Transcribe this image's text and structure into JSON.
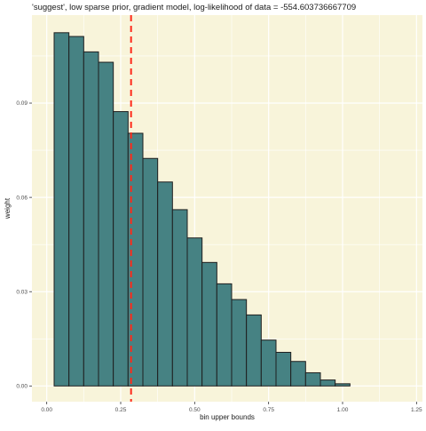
{
  "chart_data": {
    "type": "bar",
    "title": "'suggest', low sparse prior, gradient model, log-likelihood of data = -554.603736667709",
    "xlabel": "bin upper bounds",
    "ylabel": "weight",
    "xlim": [
      -0.05,
      1.27
    ],
    "ylim": [
      -0.005,
      0.118
    ],
    "x_ticks": [
      0.0,
      0.25,
      0.5,
      0.75,
      1.0,
      1.25
    ],
    "x_tick_labels": [
      "0.00",
      "0.25",
      "0.50",
      "0.75",
      "1.00",
      "1.25"
    ],
    "y_ticks": [
      0.0,
      0.03,
      0.06,
      0.09
    ],
    "y_tick_labels": [
      "0.00",
      "0.03",
      "0.06",
      "0.09"
    ],
    "bins": [
      {
        "x0": 0.025,
        "x1": 0.075,
        "value": 0.1124
      },
      {
        "x0": 0.075,
        "x1": 0.125,
        "value": 0.1112
      },
      {
        "x0": 0.125,
        "x1": 0.175,
        "value": 0.1063
      },
      {
        "x0": 0.175,
        "x1": 0.225,
        "value": 0.103
      },
      {
        "x0": 0.225,
        "x1": 0.275,
        "value": 0.0873
      },
      {
        "x0": 0.275,
        "x1": 0.325,
        "value": 0.0804
      },
      {
        "x0": 0.325,
        "x1": 0.375,
        "value": 0.0724
      },
      {
        "x0": 0.375,
        "x1": 0.425,
        "value": 0.0649
      },
      {
        "x0": 0.425,
        "x1": 0.475,
        "value": 0.0561
      },
      {
        "x0": 0.475,
        "x1": 0.525,
        "value": 0.0471
      },
      {
        "x0": 0.525,
        "x1": 0.575,
        "value": 0.0393
      },
      {
        "x0": 0.575,
        "x1": 0.625,
        "value": 0.0325
      },
      {
        "x0": 0.625,
        "x1": 0.675,
        "value": 0.0275
      },
      {
        "x0": 0.675,
        "x1": 0.725,
        "value": 0.0226
      },
      {
        "x0": 0.725,
        "x1": 0.775,
        "value": 0.0146
      },
      {
        "x0": 0.775,
        "x1": 0.825,
        "value": 0.0107
      },
      {
        "x0": 0.825,
        "x1": 0.875,
        "value": 0.0078
      },
      {
        "x0": 0.875,
        "x1": 0.925,
        "value": 0.0042
      },
      {
        "x0": 0.925,
        "x1": 0.975,
        "value": 0.0019
      },
      {
        "x0": 0.975,
        "x1": 1.025,
        "value": 0.0007
      }
    ],
    "vline": {
      "x": 0.285,
      "color": "#ff2a1a",
      "style": "dashed"
    },
    "grid": true,
    "colors": {
      "panel_background": "#f8f4da",
      "grid": "#ffffff",
      "bar_fill": "#468283",
      "bar_stroke": "#1f1f1f",
      "text": "#1a1a1a",
      "tick_text": "#4d4d4d"
    }
  }
}
